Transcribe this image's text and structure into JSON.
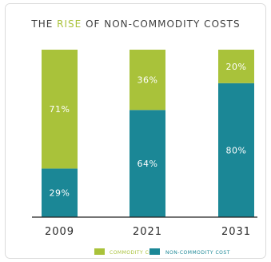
{
  "chart_data": {
    "type": "bar",
    "stacked": true,
    "title": {
      "pre": "THE ",
      "accent": "RISE",
      "post": " OF NON-COMMODITY COSTS"
    },
    "categories": [
      "2009",
      "2021",
      "2031"
    ],
    "series": [
      {
        "name": "COMMODITY COST",
        "values": [
          71,
          36,
          20
        ],
        "labels": [
          "71%",
          "36%",
          "20%"
        ],
        "color": "#a9c23a"
      },
      {
        "name": "NON-COMMODITY COST",
        "values": [
          29,
          64,
          80
        ],
        "labels": [
          "29%",
          "64%",
          "80%"
        ],
        "color": "#1b8796"
      }
    ],
    "ylim": [
      0,
      100
    ],
    "legend_position": "bottom",
    "grid": false,
    "frame_color": "#dcdcdc",
    "baseline_color": "#222222"
  }
}
